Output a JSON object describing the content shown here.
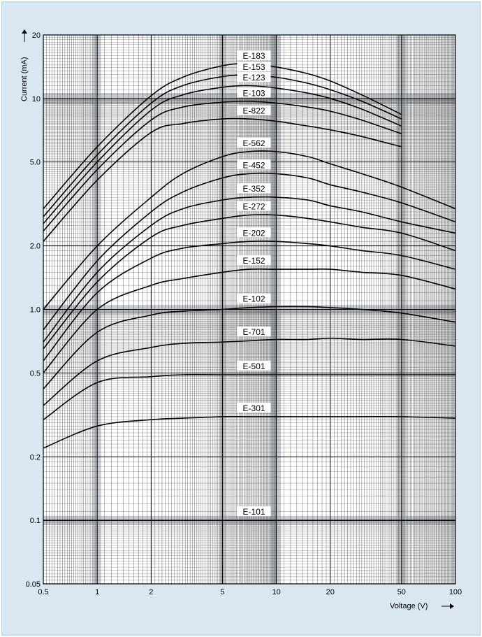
{
  "chart_data": {
    "type": "line",
    "title": "",
    "xlabel": "Voltage  (V)",
    "ylabel": "Current (mA)",
    "x_scale": "log",
    "y_scale": "log",
    "xlim": [
      0.5,
      100
    ],
    "ylim": [
      0.05,
      20
    ],
    "x_ticks": [
      "0.5",
      "1",
      "2",
      "5",
      "10",
      "20",
      "50",
      "100"
    ],
    "y_ticks": [
      "0.05",
      "0.1",
      "0.2",
      "0.5",
      "1.0",
      "2.0",
      "5.0",
      "10",
      "20"
    ],
    "x_tick_values": [
      0.5,
      1,
      2,
      5,
      10,
      20,
      50,
      100
    ],
    "y_tick_values": [
      0.05,
      0.1,
      0.2,
      0.5,
      1.0,
      2.0,
      5.0,
      10,
      20
    ],
    "grid": true,
    "legend": "none (series labeled inline)",
    "colors": {
      "background": "#d9e7f0",
      "grid": "#000000",
      "line": "#000000",
      "label_box": "#ffffff"
    },
    "series": [
      {
        "name": "E-183",
        "x": [
          0.5,
          1,
          2,
          3,
          5,
          7,
          10,
          15,
          20,
          30,
          50
        ],
        "y": [
          3.0,
          5.9,
          10.3,
          12.6,
          14.3,
          14.6,
          14.1,
          13.1,
          12.1,
          10.4,
          8.4
        ]
      },
      {
        "name": "E-153",
        "x": [
          0.5,
          1,
          2,
          3,
          5,
          7,
          10,
          15,
          20,
          30,
          50
        ],
        "y": [
          2.75,
          5.4,
          9.5,
          11.5,
          12.7,
          12.9,
          12.6,
          11.8,
          11.0,
          9.7,
          8.0
        ]
      },
      {
        "name": "E-123",
        "x": [
          0.5,
          1,
          2,
          3,
          5,
          7,
          10,
          15,
          20,
          30,
          50
        ],
        "y": [
          2.55,
          5.0,
          8.8,
          10.4,
          11.3,
          11.5,
          11.2,
          10.6,
          10.0,
          8.9,
          7.4
        ]
      },
      {
        "name": "E-103",
        "x": [
          0.5,
          1,
          2,
          3,
          5,
          7,
          10,
          15,
          20,
          30,
          50
        ],
        "y": [
          2.35,
          4.6,
          7.9,
          9.1,
          9.6,
          9.7,
          9.5,
          9.1,
          8.7,
          7.9,
          6.8
        ]
      },
      {
        "name": "E-822",
        "x": [
          0.5,
          1,
          2,
          3,
          5,
          7,
          10,
          15,
          20,
          30,
          50
        ],
        "y": [
          2.1,
          4.1,
          6.9,
          7.6,
          8.0,
          8.0,
          7.8,
          7.4,
          7.1,
          6.6,
          5.9
        ]
      },
      {
        "name": "E-562",
        "x": [
          0.5,
          1,
          2,
          3,
          5,
          7,
          10,
          15,
          20,
          30,
          50,
          100
        ],
        "y": [
          1.0,
          2.0,
          3.4,
          4.4,
          5.3,
          5.6,
          5.6,
          5.3,
          4.9,
          4.4,
          3.8,
          3.0
        ]
      },
      {
        "name": "E-452",
        "x": [
          0.5,
          1,
          2,
          3,
          5,
          7,
          10,
          15,
          20,
          30,
          50,
          100
        ],
        "y": [
          0.8,
          1.7,
          2.9,
          3.6,
          4.2,
          4.4,
          4.4,
          4.2,
          3.9,
          3.6,
          3.2,
          2.6
        ]
      },
      {
        "name": "E-352",
        "x": [
          0.5,
          1,
          2,
          3,
          5,
          7,
          10,
          15,
          20,
          30,
          50,
          100
        ],
        "y": [
          0.7,
          1.5,
          2.5,
          3.0,
          3.3,
          3.4,
          3.4,
          3.3,
          3.1,
          2.9,
          2.6,
          2.3
        ]
      },
      {
        "name": "E-272",
        "x": [
          0.5,
          1,
          2,
          3,
          5,
          7,
          10,
          15,
          20,
          30,
          50,
          100
        ],
        "y": [
          0.65,
          1.35,
          2.2,
          2.5,
          2.7,
          2.8,
          2.8,
          2.7,
          2.6,
          2.45,
          2.3,
          1.9
        ]
      },
      {
        "name": "E-202",
        "x": [
          0.5,
          1,
          2,
          3,
          5,
          7,
          10,
          15,
          20,
          30,
          50,
          100
        ],
        "y": [
          0.57,
          1.2,
          1.75,
          1.95,
          2.05,
          2.1,
          2.1,
          2.05,
          2.0,
          1.9,
          1.8,
          1.55
        ]
      },
      {
        "name": "E-152",
        "x": [
          0.5,
          1,
          2,
          3,
          5,
          7,
          10,
          15,
          20,
          30,
          50,
          100
        ],
        "y": [
          0.5,
          1.0,
          1.3,
          1.4,
          1.5,
          1.55,
          1.55,
          1.55,
          1.55,
          1.5,
          1.45,
          1.25
        ]
      },
      {
        "name": "E-102",
        "x": [
          0.5,
          1,
          2,
          3,
          5,
          7,
          10,
          15,
          20,
          30,
          50,
          100
        ],
        "y": [
          0.42,
          0.78,
          0.94,
          0.98,
          1.0,
          1.02,
          1.03,
          1.03,
          1.02,
          1.0,
          0.96,
          0.87
        ]
      },
      {
        "name": "E-701",
        "x": [
          0.5,
          1,
          2,
          3,
          5,
          7,
          10,
          15,
          20,
          30,
          50,
          100
        ],
        "y": [
          0.35,
          0.57,
          0.66,
          0.69,
          0.7,
          0.71,
          0.72,
          0.72,
          0.73,
          0.72,
          0.72,
          0.67
        ]
      },
      {
        "name": "E-501",
        "x": [
          0.5,
          1,
          2,
          3,
          5,
          7,
          10,
          15,
          20,
          30,
          50,
          100
        ],
        "y": [
          0.3,
          0.45,
          0.48,
          0.49,
          0.49,
          0.49,
          0.49,
          0.49,
          0.49,
          0.49,
          0.49,
          0.49
        ]
      },
      {
        "name": "E-301",
        "x": [
          0.5,
          1,
          2,
          3,
          5,
          7,
          10,
          15,
          20,
          30,
          50,
          100
        ],
        "y": [
          0.22,
          0.28,
          0.3,
          0.305,
          0.31,
          0.31,
          0.31,
          0.31,
          0.31,
          0.31,
          0.31,
          0.305
        ]
      },
      {
        "name": "E-101",
        "x": [
          0.5,
          1,
          2,
          5,
          10,
          20,
          50,
          100
        ],
        "y": [
          0.1,
          0.1,
          0.1,
          0.1,
          0.1,
          0.1,
          0.1,
          0.1
        ]
      }
    ]
  }
}
